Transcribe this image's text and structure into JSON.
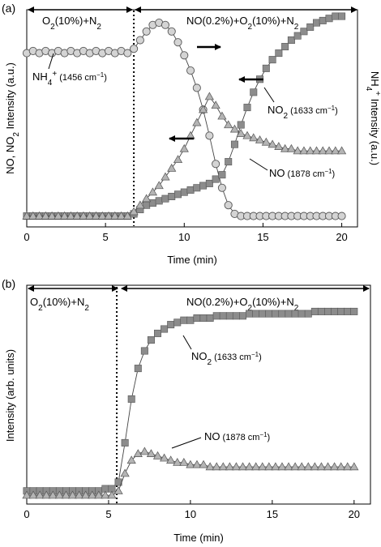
{
  "chart_data": [
    {
      "panel_label": "(a)",
      "type": "scatter",
      "xlabel": "Time (min)",
      "ylabel_left": "NO, NO",
      "ylabel_left_sub": "2",
      "ylabel_left_rest": " Intensity (a.u.)",
      "ylabel_right": "NH",
      "ylabel_right_sub": "4",
      "ylabel_right_sup": "+",
      "ylabel_right_rest": " Intensity (a.u.)",
      "xlim": [
        0,
        21
      ],
      "ylim": [
        0,
        1
      ],
      "xticks": [
        "0",
        "5",
        "10",
        "15",
        "20"
      ],
      "switch_time": 6.8,
      "phase_labels": {
        "left": {
          "pre": "O",
          "sub1": "2",
          "mid": "(10%)+N",
          "sub2": "2"
        },
        "right": {
          "pre": "NO(0.2%)+O",
          "sub1": "2",
          "mid": "(10%)+N",
          "sub2": "2"
        }
      },
      "series": [
        {
          "name": "NH4+ (1456 cm-1)",
          "marker": "circle",
          "color": "#d4d4d4",
          "axis": "right",
          "x": [
            0,
            0.4,
            0.8,
            1.2,
            1.6,
            2,
            2.4,
            2.8,
            3.2,
            3.6,
            4,
            4.4,
            4.8,
            5.2,
            5.6,
            6,
            6.4,
            6.8,
            7.2,
            7.6,
            8,
            8.4,
            8.8,
            9.2,
            9.6,
            10,
            10.4,
            10.8,
            11.2,
            11.6,
            12,
            12.4,
            12.8,
            13.2,
            13.6,
            14,
            14.4,
            14.8,
            15.2,
            15.6,
            16,
            16.4,
            16.8,
            17.2,
            17.6,
            18,
            18.4,
            18.8,
            19.2,
            19.6,
            20
          ],
          "values": [
            0.8,
            0.81,
            0.8,
            0.81,
            0.8,
            0.81,
            0.8,
            0.81,
            0.8,
            0.81,
            0.8,
            0.81,
            0.8,
            0.81,
            0.8,
            0.81,
            0.8,
            0.82,
            0.86,
            0.9,
            0.93,
            0.94,
            0.93,
            0.9,
            0.85,
            0.79,
            0.72,
            0.64,
            0.54,
            0.42,
            0.29,
            0.18,
            0.1,
            0.06,
            0.05,
            0.05,
            0.05,
            0.05,
            0.05,
            0.05,
            0.05,
            0.05,
            0.05,
            0.05,
            0.05,
            0.05,
            0.05,
            0.05,
            0.05,
            0.05,
            0.05
          ]
        },
        {
          "name": "NO2 (1633 cm-1)",
          "marker": "square",
          "color": "#8c8c8c",
          "axis": "left",
          "x": [
            0,
            0.4,
            0.8,
            1.2,
            1.6,
            2,
            2.4,
            2.8,
            3.2,
            3.6,
            4,
            4.4,
            4.8,
            5.2,
            5.6,
            6,
            6.4,
            6.8,
            7.2,
            7.6,
            8,
            8.4,
            8.8,
            9.2,
            9.6,
            10,
            10.4,
            10.8,
            11.2,
            11.6,
            12,
            12.4,
            12.8,
            13.2,
            13.6,
            14,
            14.4,
            14.8,
            15.2,
            15.6,
            16,
            16.4,
            16.8,
            17.2,
            17.6,
            18,
            18.4,
            18.8,
            19.2,
            19.6,
            20
          ],
          "values": [
            0.05,
            0.05,
            0.05,
            0.05,
            0.05,
            0.05,
            0.05,
            0.05,
            0.05,
            0.05,
            0.05,
            0.05,
            0.05,
            0.05,
            0.05,
            0.05,
            0.05,
            0.06,
            0.08,
            0.1,
            0.11,
            0.12,
            0.13,
            0.14,
            0.15,
            0.16,
            0.17,
            0.18,
            0.19,
            0.2,
            0.22,
            0.24,
            0.3,
            0.38,
            0.47,
            0.55,
            0.62,
            0.68,
            0.73,
            0.77,
            0.8,
            0.83,
            0.86,
            0.88,
            0.9,
            0.92,
            0.94,
            0.95,
            0.96,
            0.97,
            0.97
          ]
        },
        {
          "name": "NO (1878 cm-1)",
          "marker": "triangle",
          "color": "#b4b4b4",
          "axis": "left",
          "x": [
            0,
            0.4,
            0.8,
            1.2,
            1.6,
            2,
            2.4,
            2.8,
            3.2,
            3.6,
            4,
            4.4,
            4.8,
            5.2,
            5.6,
            6,
            6.4,
            6.8,
            7.2,
            7.6,
            8,
            8.4,
            8.8,
            9.2,
            9.6,
            10,
            10.4,
            10.8,
            11.2,
            11.6,
            12,
            12.4,
            12.8,
            13.2,
            13.6,
            14,
            14.4,
            14.8,
            15.2,
            15.6,
            16,
            16.4,
            16.8,
            17.2,
            17.6,
            18,
            18.4,
            18.8,
            19.2,
            19.6,
            20
          ],
          "values": [
            0.05,
            0.05,
            0.05,
            0.05,
            0.05,
            0.05,
            0.05,
            0.05,
            0.05,
            0.05,
            0.05,
            0.05,
            0.05,
            0.05,
            0.05,
            0.05,
            0.05,
            0.07,
            0.1,
            0.13,
            0.16,
            0.19,
            0.23,
            0.27,
            0.31,
            0.36,
            0.42,
            0.48,
            0.54,
            0.6,
            0.56,
            0.51,
            0.47,
            0.45,
            0.43,
            0.42,
            0.41,
            0.4,
            0.39,
            0.38,
            0.37,
            0.36,
            0.36,
            0.35,
            0.35,
            0.35,
            0.35,
            0.35,
            0.35,
            0.35,
            0.35
          ]
        }
      ],
      "annotations": {
        "nh4": {
          "pre": "NH",
          "sub": "4",
          "sup": "+",
          "post": " (1456 cm",
          "sup2": "−1",
          "end": ")"
        },
        "no2": {
          "pre": "NO",
          "sub": "2",
          "post": " (1633 cm",
          "sup2": "−1",
          "end": ")"
        },
        "no": {
          "pre": "NO",
          "post": " (1878 cm",
          "sup2": "−1",
          "end": ")"
        }
      }
    },
    {
      "panel_label": "(b)",
      "type": "scatter",
      "xlabel": "Time (min)",
      "ylabel": "Intensity (arb. units)",
      "xlim": [
        0,
        21
      ],
      "ylim": [
        0,
        1
      ],
      "xticks": [
        "0",
        "5",
        "10",
        "15",
        "20"
      ],
      "switch_time": 5.5,
      "phase_labels": {
        "left": {
          "pre": "O",
          "sub1": "2",
          "mid": "(10%)+N",
          "sub2": "2"
        },
        "right": {
          "pre": "NO(0.2%)+O",
          "sub1": "2",
          "mid": "(10%)+N",
          "sub2": "2"
        }
      },
      "series": [
        {
          "name": "NO2 (1633 cm-1)",
          "marker": "square",
          "color": "#8c8c8c",
          "x": [
            0,
            0.4,
            0.8,
            1.2,
            1.6,
            2,
            2.4,
            2.8,
            3.2,
            3.6,
            4,
            4.4,
            4.8,
            5.2,
            5.6,
            6,
            6.4,
            6.8,
            7.2,
            7.6,
            8,
            8.4,
            8.8,
            9.2,
            9.6,
            10,
            10.4,
            10.8,
            11.2,
            11.6,
            12,
            12.4,
            12.8,
            13.2,
            13.6,
            14,
            14.4,
            14.8,
            15.2,
            15.6,
            16,
            16.4,
            16.8,
            17.2,
            17.6,
            18,
            18.4,
            18.8,
            19.2,
            19.6,
            20
          ],
          "values": [
            0.06,
            0.06,
            0.06,
            0.06,
            0.06,
            0.06,
            0.06,
            0.06,
            0.06,
            0.06,
            0.06,
            0.06,
            0.07,
            0.07,
            0.1,
            0.28,
            0.48,
            0.62,
            0.7,
            0.75,
            0.78,
            0.8,
            0.82,
            0.83,
            0.84,
            0.84,
            0.85,
            0.85,
            0.85,
            0.86,
            0.86,
            0.86,
            0.86,
            0.86,
            0.87,
            0.87,
            0.87,
            0.87,
            0.87,
            0.87,
            0.87,
            0.87,
            0.87,
            0.87,
            0.88,
            0.88,
            0.88,
            0.88,
            0.88,
            0.88,
            0.88
          ]
        },
        {
          "name": "NO (1878 cm-1)",
          "marker": "triangle",
          "color": "#b4b4b4",
          "x": [
            0,
            0.4,
            0.8,
            1.2,
            1.6,
            2,
            2.4,
            2.8,
            3.2,
            3.6,
            4,
            4.4,
            4.8,
            5.2,
            5.6,
            6,
            6.4,
            6.8,
            7.2,
            7.6,
            8,
            8.4,
            8.8,
            9.2,
            9.6,
            10,
            10.4,
            10.8,
            11.2,
            11.6,
            12,
            12.4,
            12.8,
            13.2,
            13.6,
            14,
            14.4,
            14.8,
            15.2,
            15.6,
            16,
            16.4,
            16.8,
            17.2,
            17.6,
            18,
            18.4,
            18.8,
            19.2,
            19.6,
            20
          ],
          "values": [
            0.04,
            0.04,
            0.04,
            0.04,
            0.04,
            0.04,
            0.04,
            0.04,
            0.04,
            0.04,
            0.04,
            0.04,
            0.04,
            0.04,
            0.06,
            0.14,
            0.2,
            0.23,
            0.24,
            0.23,
            0.22,
            0.21,
            0.2,
            0.19,
            0.19,
            0.18,
            0.18,
            0.18,
            0.17,
            0.17,
            0.17,
            0.17,
            0.17,
            0.17,
            0.17,
            0.17,
            0.17,
            0.17,
            0.17,
            0.17,
            0.17,
            0.17,
            0.17,
            0.17,
            0.17,
            0.17,
            0.17,
            0.17,
            0.17,
            0.17,
            0.17
          ]
        }
      ],
      "annotations": {
        "no2": {
          "pre": "NO",
          "sub": "2",
          "post": " (1633 cm",
          "sup2": "−1",
          "end": ")"
        },
        "no": {
          "pre": "NO",
          "post": " (1878 cm",
          "sup2": "−1",
          "end": ")"
        }
      }
    }
  ]
}
